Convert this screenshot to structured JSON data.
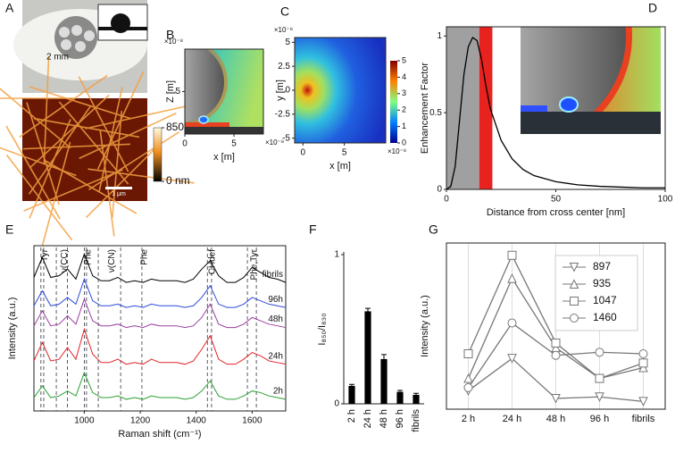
{
  "chart_data": [
    {
      "type": "image",
      "panel": "A",
      "scale_label": "2 mm",
      "scale_bar": "1 μm",
      "colorbar_ticks": [
        850,
        {
          "value": 0,
          "label": "0 nm"
        }
      ]
    },
    {
      "type": "heatmap",
      "panel": "B",
      "xlabel": "x [m]",
      "ylabel": "Z [m]",
      "x_multiplier": "×10⁻⁸",
      "y_multiplier": "×10⁻⁸",
      "xlim": [
        0,
        8
      ],
      "ylim": [
        0,
        10
      ],
      "xticks": [
        0,
        5
      ],
      "yticks": [
        5
      ]
    },
    {
      "type": "heatmap",
      "panel": "C",
      "xlabel": "x [m]",
      "ylabel": "y [m]",
      "x_multiplier": "×10⁻⁸",
      "y_multiplier": "×10⁻⁸",
      "xlim": [
        -1,
        10
      ],
      "ylim": [
        -5.5,
        5.5
      ],
      "xticks": [
        0,
        5
      ],
      "yticks": [
        -5,
        -2.5,
        0,
        2.5,
        5
      ],
      "clim": [
        0,
        5
      ],
      "cticks": [
        0,
        1,
        2,
        3,
        4,
        5
      ]
    },
    {
      "type": "line",
      "panel": "D",
      "xlabel": "Distance from cross center [nm]",
      "ylabel": "Enhancement Factor",
      "xlim": [
        0,
        100
      ],
      "ylim": [
        0,
        1.06
      ],
      "xticks": [
        0,
        50,
        100
      ],
      "yticks": [
        0,
        0.5,
        1
      ],
      "color": "#000000",
      "spans": [
        {
          "from": 0,
          "to": 15,
          "color": "#a0a0a0"
        },
        {
          "from": 15,
          "to": 21,
          "color": "#e8221e"
        }
      ],
      "x": [
        0,
        2,
        4,
        6,
        8,
        10,
        12,
        14,
        16,
        18,
        20,
        25,
        30,
        35,
        40,
        50,
        60,
        70,
        80,
        90,
        100
      ],
      "values": [
        0,
        0.02,
        0.15,
        0.45,
        0.75,
        0.93,
        0.99,
        0.97,
        0.85,
        0.68,
        0.53,
        0.32,
        0.2,
        0.13,
        0.09,
        0.05,
        0.03,
        0.02,
        0.015,
        0.01,
        0.01
      ]
    },
    {
      "type": "line",
      "panel": "E",
      "xlabel": "Raman shift (cm⁻¹)",
      "ylabel": "Intensity (a.u.)",
      "xlim": [
        820,
        1720
      ],
      "ylim": [
        0.5,
        10.4
      ],
      "xticks": [
        1000,
        1200,
        1400,
        1600
      ],
      "annotations": [
        {
          "text": "Tyr",
          "x": [
            845,
            855
          ]
        },
        {
          "text": "ν(CC)",
          "x": [
            900,
            940
          ]
        },
        {
          "text": "Phe",
          "x": [
            1000,
            1008
          ]
        },
        {
          "text": "ν(CN)",
          "x": [
            1050,
            1130
          ]
        },
        {
          "text": "Phe",
          "x": [
            1206
          ]
        },
        {
          "text": "CHdef",
          "x": [
            1440,
            1455
          ]
        },
        {
          "text": "Phe,Tyr",
          "x": [
            1583,
            1615
          ]
        }
      ],
      "x": [
        820,
        850,
        880,
        910,
        940,
        970,
        1000,
        1030,
        1060,
        1090,
        1120,
        1150,
        1180,
        1210,
        1240,
        1270,
        1300,
        1330,
        1360,
        1390,
        1420,
        1450,
        1480,
        1510,
        1540,
        1570,
        1600,
        1630,
        1660,
        1690,
        1720
      ],
      "series": [
        {
          "name": "fibrils",
          "color": "#000000",
          "values": [
            8.5,
            9.7,
            8.5,
            8.6,
            9.0,
            8.4,
            9.9,
            8.6,
            8.3,
            8.3,
            8.5,
            8.2,
            8.3,
            8.2,
            8.4,
            8.3,
            8.3,
            8.3,
            8.2,
            8.4,
            9.0,
            9.5,
            8.6,
            8.2,
            8.2,
            8.5,
            9.1,
            8.8,
            8.5,
            8.4,
            8.2
          ]
        },
        {
          "name": "96h",
          "color": "#2d4bd8",
          "values": [
            6.8,
            7.7,
            6.8,
            6.9,
            7.3,
            6.9,
            8.4,
            7.1,
            6.8,
            6.8,
            6.9,
            6.7,
            6.8,
            6.7,
            6.9,
            6.8,
            6.8,
            6.8,
            6.7,
            6.8,
            7.3,
            8.0,
            6.9,
            6.7,
            6.7,
            6.9,
            7.3,
            7.1,
            6.9,
            6.8,
            6.7
          ]
        },
        {
          "name": "48h",
          "color": "#9b3fa0",
          "values": [
            5.6,
            6.5,
            5.6,
            5.7,
            6.2,
            5.7,
            7.2,
            5.9,
            5.6,
            5.6,
            5.7,
            5.5,
            5.6,
            5.5,
            5.7,
            5.6,
            5.6,
            5.6,
            5.5,
            5.6,
            6.1,
            6.9,
            5.7,
            5.5,
            5.5,
            5.7,
            6.1,
            5.9,
            5.7,
            5.6,
            5.5
          ]
        },
        {
          "name": "24h",
          "color": "#e0262a",
          "values": [
            3.5,
            4.6,
            3.5,
            3.6,
            4.3,
            3.6,
            5.4,
            3.9,
            3.4,
            3.4,
            3.6,
            3.3,
            3.4,
            3.3,
            3.6,
            3.4,
            3.4,
            3.4,
            3.3,
            3.5,
            4.2,
            5.0,
            3.6,
            3.3,
            3.3,
            3.6,
            4.0,
            3.8,
            3.5,
            3.4,
            3.3
          ]
        },
        {
          "name": "2h",
          "color": "#2aa032",
          "values": [
            1.3,
            2.0,
            1.3,
            1.4,
            1.7,
            1.4,
            2.8,
            1.6,
            1.3,
            1.3,
            1.4,
            1.2,
            1.3,
            1.2,
            1.4,
            1.3,
            1.3,
            1.3,
            1.2,
            1.3,
            1.7,
            2.3,
            1.4,
            1.2,
            1.2,
            1.4,
            1.7,
            1.6,
            1.4,
            1.3,
            1.2
          ]
        }
      ]
    },
    {
      "type": "bar",
      "panel": "F",
      "ylabel": "I₈₅₀/I₈₃₀",
      "ylim": [
        0,
        1
      ],
      "yticks": [
        0,
        1
      ],
      "color": "#000000",
      "categories": [
        "2 h",
        "24 h",
        "48 h",
        "96 h",
        "fibrils"
      ],
      "values": [
        0.12,
        0.62,
        0.3,
        0.08,
        0.06
      ],
      "errors": [
        0.01,
        0.02,
        0.03,
        0.01,
        0.01
      ]
    },
    {
      "type": "line",
      "panel": "G",
      "ylabel": "Intensity (a.u.)",
      "ylim": [
        0,
        1.08
      ],
      "grid": true,
      "categories": [
        "2 h",
        "24 h",
        "48 h",
        "96 h",
        "fibrils"
      ],
      "series": [
        {
          "name": "897",
          "color": "#777777",
          "marker": "triangle-down",
          "values": [
            0.12,
            0.33,
            0.07,
            0.08,
            0.05
          ]
        },
        {
          "name": "935",
          "color": "#777777",
          "marker": "triangle-up",
          "values": [
            0.2,
            0.85,
            0.4,
            0.2,
            0.27
          ]
        },
        {
          "name": "1047",
          "color": "#777777",
          "marker": "square",
          "values": [
            0.36,
            1.0,
            0.43,
            0.2,
            0.3
          ]
        },
        {
          "name": "1460",
          "color": "#777777",
          "marker": "circle",
          "values": [
            0.14,
            0.56,
            0.35,
            0.37,
            0.36
          ]
        }
      ]
    }
  ]
}
